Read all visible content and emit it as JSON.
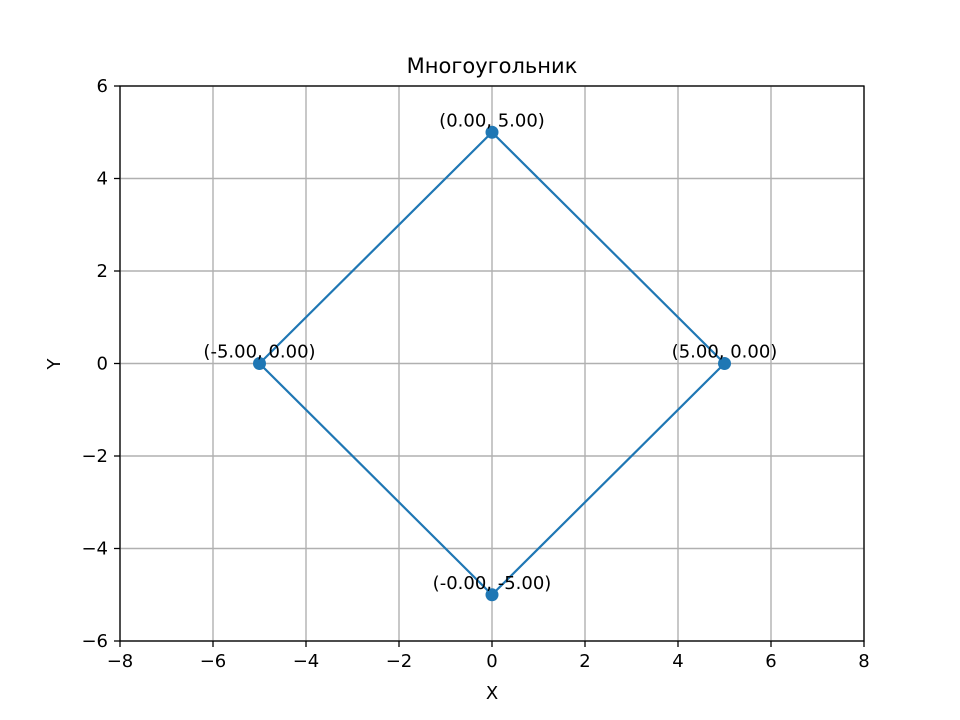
{
  "chart_data": {
    "type": "line",
    "title": "Многоугольник",
    "xlabel": "X",
    "ylabel": "Y",
    "xlim": [
      -8,
      8
    ],
    "ylim": [
      -6,
      6
    ],
    "xticks": [
      -8,
      -6,
      -4,
      -2,
      0,
      2,
      4,
      6,
      8
    ],
    "yticks": [
      -6,
      -4,
      -2,
      0,
      2,
      4,
      6
    ],
    "xtick_labels": [
      "−8",
      "−6",
      "−4",
      "−2",
      "0",
      "2",
      "4",
      "6",
      "8"
    ],
    "ytick_labels": [
      "−6",
      "−4",
      "−2",
      "0",
      "2",
      "4",
      "6"
    ],
    "grid": true,
    "closed": true,
    "color": "#1f77b4",
    "points": [
      {
        "x": 5,
        "y": 0,
        "label": "(5.00, 0.00)"
      },
      {
        "x": 0,
        "y": 5,
        "label": "(0.00, 5.00)"
      },
      {
        "x": -5,
        "y": 0,
        "label": "(-5.00, 0.00)"
      },
      {
        "x": 0,
        "y": -5,
        "label": "(-0.00, -5.00)"
      }
    ]
  }
}
